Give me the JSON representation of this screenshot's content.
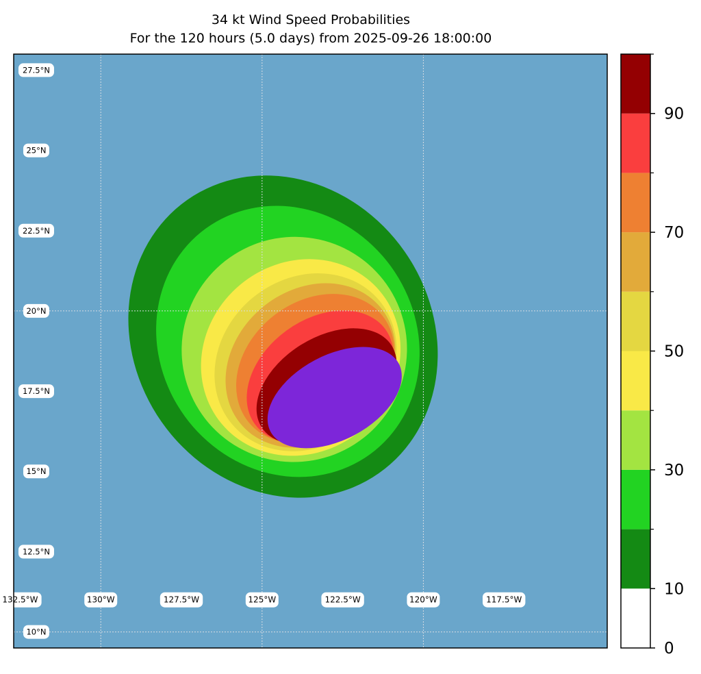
{
  "title": {
    "line1": "34 kt Wind Speed Probabilities",
    "line2": "For the 120 hours (5.0 days) from 2025-09-26 18:00:00"
  },
  "map": {
    "ocean_color": "#6aa6cb",
    "grid_color": "#d8dde3",
    "lat_range": [
      9.5,
      28.0
    ],
    "lon_range": [
      -132.7,
      -114.3
    ],
    "lat_labels": [
      {
        "lat": 27.5,
        "label": "27.5°N"
      },
      {
        "lat": 25.0,
        "label": "25°N"
      },
      {
        "lat": 22.5,
        "label": "22.5°N"
      },
      {
        "lat": 20.0,
        "label": "20°N"
      },
      {
        "lat": 17.5,
        "label": "17.5°N"
      },
      {
        "lat": 15.0,
        "label": "15°N"
      },
      {
        "lat": 12.5,
        "label": "12.5°N"
      },
      {
        "lat": 10.0,
        "label": "10°N"
      }
    ],
    "lon_labels": [
      {
        "lon": -132.5,
        "label": "132.5°W"
      },
      {
        "lon": -130.0,
        "label": "130°W"
      },
      {
        "lon": -127.5,
        "label": "127.5°W"
      },
      {
        "lon": -125.0,
        "label": "125°W"
      },
      {
        "lon": -122.5,
        "label": "122.5°W"
      },
      {
        "lon": -120.0,
        "label": "120°W"
      },
      {
        "lon": -117.5,
        "label": "117.5°W"
      }
    ],
    "lon_label_lat": 11.0,
    "gridline_lats": [
      20.0,
      10.0
    ],
    "gridline_lons": [
      -130.0,
      -125.0,
      -120.0
    ],
    "probability_contours": [
      {
        "level": "0-10%",
        "color": "#148a14",
        "center": [
          -124.35,
          19.2
        ],
        "lon_radius": 4.6,
        "lat_radius": 5.2,
        "rotation_deg": -35
      },
      {
        "level": "10-20%",
        "color": "#22d322",
        "center": [
          -124.2,
          19.05
        ],
        "lon_radius": 3.95,
        "lat_radius": 4.35,
        "rotation_deg": -36
      },
      {
        "level": "20-30%",
        "color": "#a3e441",
        "center": [
          -124.0,
          18.8
        ],
        "lon_radius": 3.5,
        "lat_radius": 3.5,
        "rotation_deg": -38
      },
      {
        "level": "30-40%",
        "color": "#f9e947",
        "center": [
          -123.8,
          18.55
        ],
        "lon_radius": 3.2,
        "lat_radius": 2.95,
        "rotation_deg": -40
      },
      {
        "level": "40-50%",
        "color": "#e4d741",
        "center": [
          -123.65,
          18.4
        ],
        "lon_radius": 2.98,
        "lat_radius": 2.6,
        "rotation_deg": -40
      },
      {
        "level": "50-60%",
        "color": "#e2aa3a",
        "center": [
          -123.5,
          18.3
        ],
        "lon_radius": 2.82,
        "lat_radius": 2.35,
        "rotation_deg": -40
      },
      {
        "level": "60-70%",
        "color": "#ee8032",
        "center": [
          -123.35,
          18.2
        ],
        "lon_radius": 2.65,
        "lat_radius": 2.1,
        "rotation_deg": -38
      },
      {
        "level": "70-80%",
        "color": "#fa3e3e",
        "center": [
          -123.2,
          17.95
        ],
        "lon_radius": 2.5,
        "lat_radius": 1.78,
        "rotation_deg": -36
      },
      {
        "level": "80-90%",
        "color": "#940002",
        "center": [
          -123.0,
          17.65
        ],
        "lon_radius": 2.38,
        "lat_radius": 1.52,
        "rotation_deg": -32
      },
      {
        "level": "90-100%",
        "color": "#7d26d9",
        "center": [
          -122.75,
          17.3
        ],
        "lon_radius": 2.25,
        "lat_radius": 1.32,
        "rotation_deg": -28
      }
    ]
  },
  "colorbar": {
    "min": 0,
    "max": 100,
    "colors": [
      "#ffffff",
      "#148a14",
      "#22d322",
      "#a3e441",
      "#f9e947",
      "#e4d741",
      "#e2aa3a",
      "#ee8032",
      "#fa3e3e",
      "#940002",
      "#7d26d9"
    ],
    "boundaries": [
      0,
      10,
      20,
      30,
      40,
      50,
      60,
      70,
      80,
      90,
      100
    ],
    "major_ticks": [
      {
        "value": 0,
        "label": "0"
      },
      {
        "value": 10,
        "label": "10"
      },
      {
        "value": 30,
        "label": "30"
      },
      {
        "value": 50,
        "label": "50"
      },
      {
        "value": 70,
        "label": "70"
      },
      {
        "value": 90,
        "label": "90"
      }
    ],
    "minor_ticks": [
      20,
      40,
      60,
      80,
      100
    ]
  }
}
